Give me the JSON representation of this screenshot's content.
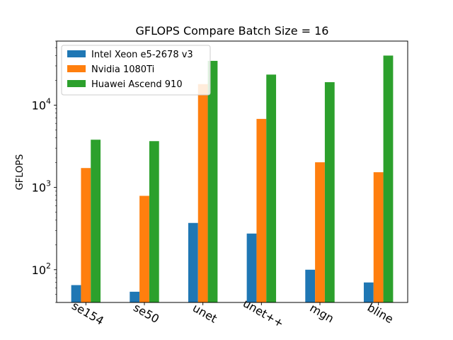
{
  "chart_data": {
    "type": "bar",
    "title": "GFLOPS Compare Batch Size = 16",
    "xlabel": "",
    "ylabel": "GFLOPS",
    "yscale": "log",
    "ylim": [
      40,
      60000
    ],
    "yticks": [
      {
        "value": 100,
        "base": "10",
        "exp": "2"
      },
      {
        "value": 1000,
        "base": "10",
        "exp": "3"
      },
      {
        "value": 10000,
        "base": "10",
        "exp": "4"
      }
    ],
    "categories": [
      "se154",
      "se50",
      "unet",
      "unet++",
      "mgn",
      "bline"
    ],
    "series": [
      {
        "name": "Intel Xeon e5-2678 v3",
        "color": "#1f77b4",
        "values": [
          65,
          54,
          370,
          275,
          100,
          70
        ]
      },
      {
        "name": "Nvidia 1080Ti",
        "color": "#ff7f0e",
        "values": [
          1720,
          790,
          18000,
          6800,
          2020,
          1530
        ]
      },
      {
        "name": "Huawei Ascend 910",
        "color": "#2ca02c",
        "values": [
          3800,
          3650,
          34500,
          23500,
          19000,
          40000
        ]
      }
    ],
    "legend_position": "top-left",
    "grid": false
  }
}
